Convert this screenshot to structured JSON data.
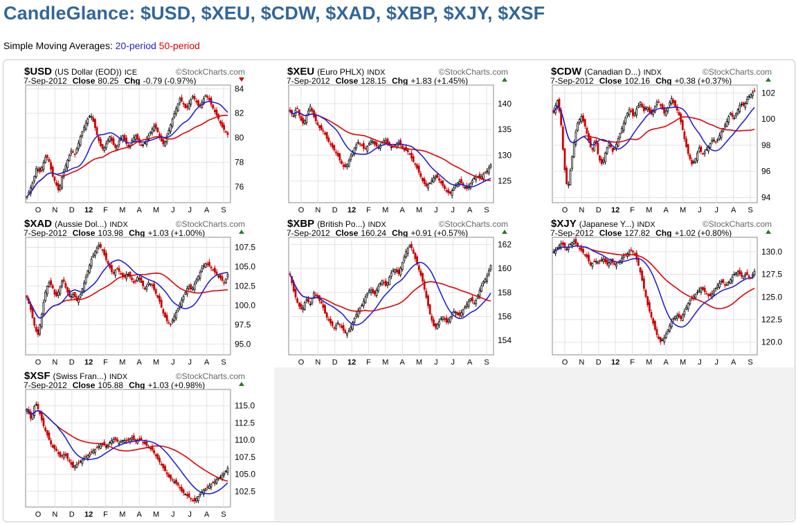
{
  "header": {
    "title": "CandleGlance: $USD, $XEU, $CDW, $XAD, $XBP, $XJY, $XSF",
    "subtitle_prefix": "Simple Moving Averages:",
    "sma20_label": "20-period",
    "sma50_label": "50-period"
  },
  "colors": {
    "title": "#336699",
    "sma20": "#2222cc",
    "sma50": "#dd0000",
    "up": "#2a7a2a",
    "down": "#cc0000"
  },
  "chart_data": [
    {
      "type": "candlestick",
      "symbol": "$USD",
      "name": "(US Dollar (EOD))",
      "exchange": "ICE",
      "source": "StockCharts.com",
      "date": "7-Sep-2012",
      "close_label": "Close",
      "close": "80.25",
      "chg_label": "Chg",
      "chg": "-0.79 (-0.97%)",
      "direction": "down",
      "x_ticks": [
        "O",
        "N",
        "D",
        "12",
        "F",
        "M",
        "A",
        "M",
        "J",
        "J",
        "A",
        "S"
      ],
      "y_ticks": [
        76,
        78,
        80,
        82,
        84
      ],
      "ylim": [
        74.7,
        84.3
      ],
      "close_series": [
        75.2,
        75.8,
        76.5,
        77.6,
        77.2,
        77.8,
        78.6,
        78.0,
        76.9,
        76.3,
        75.6,
        76.8,
        77.6,
        78.4,
        79.0,
        78.6,
        79.4,
        80.3,
        80.9,
        81.5,
        81.9,
        81.2,
        80.2,
        79.4,
        79.0,
        79.6,
        80.1,
        79.5,
        79.1,
        79.8,
        80.2,
        79.6,
        79.2,
        79.8,
        80.2,
        79.7,
        79.3,
        79.6,
        80.1,
        80.6,
        81.0,
        80.5,
        79.8,
        79.4,
        80.2,
        81.0,
        81.8,
        82.5,
        83.2,
        82.8,
        82.3,
        82.9,
        83.4,
        83.0,
        82.5,
        82.9,
        83.5,
        83.2,
        82.6,
        82.1,
        81.6,
        81.0,
        80.6,
        80.25
      ]
    },
    {
      "type": "candlestick",
      "symbol": "$XEU",
      "name": "(Euro PHLX)",
      "exchange": "INDX",
      "source": "StockCharts.com",
      "date": "7-Sep-2012",
      "close_label": "Close",
      "close": "128.15",
      "chg_label": "Chg",
      "chg": "+1.83 (+1.45%)",
      "direction": "up",
      "x_ticks": [
        "O",
        "N",
        "D",
        "12",
        "F",
        "M",
        "A",
        "M",
        "J",
        "J",
        "A",
        "S"
      ],
      "y_ticks": [
        125,
        130,
        135,
        140
      ],
      "ylim": [
        120.8,
        143.6
      ],
      "close_series": [
        138.5,
        137.5,
        139.5,
        137.0,
        136.0,
        138.0,
        139.5,
        137.5,
        136.0,
        135.0,
        134.5,
        133.0,
        132.0,
        131.0,
        130.0,
        128.5,
        127.5,
        128.5,
        130.0,
        131.5,
        132.5,
        132.0,
        131.0,
        132.0,
        133.0,
        132.0,
        131.5,
        132.5,
        133.0,
        132.0,
        131.5,
        132.0,
        132.5,
        131.5,
        131.0,
        130.5,
        129.0,
        128.0,
        126.5,
        125.0,
        124.0,
        124.5,
        125.5,
        126.0,
        125.0,
        124.0,
        123.0,
        122.5,
        123.5,
        124.5,
        125.0,
        124.0,
        123.5,
        124.5,
        125.5,
        126.0,
        125.5,
        126.5,
        127.0,
        128.15
      ]
    },
    {
      "type": "candlestick",
      "symbol": "$CDW",
      "name": "(Canadian D...)",
      "exchange": "INDX",
      "source": "StockCharts.com",
      "date": "7-Sep-2012",
      "close_label": "Close",
      "close": "102.16",
      "chg_label": "Chg",
      "chg": "+0.38 (+0.37%)",
      "direction": "up",
      "x_ticks": [
        "O",
        "N",
        "D",
        "12",
        "F",
        "M",
        "A",
        "M",
        "J",
        "J",
        "A",
        "S"
      ],
      "y_ticks": [
        94,
        96,
        98,
        100,
        102
      ],
      "ylim": [
        93.6,
        102.6
      ],
      "close_series": [
        100.5,
        101.5,
        100.0,
        96.5,
        94.5,
        96.5,
        98.5,
        99.8,
        100.2,
        99.5,
        98.5,
        97.5,
        98.5,
        97.0,
        96.5,
        97.5,
        98.2,
        97.5,
        98.0,
        98.8,
        99.5,
        100.3,
        100.8,
        100.2,
        100.8,
        101.3,
        100.6,
        101.0,
        100.3,
        100.8,
        101.4,
        101.0,
        100.4,
        100.9,
        101.6,
        101.0,
        100.5,
        99.5,
        98.2,
        97.2,
        96.5,
        97.0,
        97.8,
        97.3,
        97.6,
        98.0,
        98.5,
        98.2,
        98.8,
        99.3,
        99.8,
        100.5,
        100.0,
        100.6,
        101.2,
        101.0,
        101.6,
        101.9,
        102.16
      ]
    },
    {
      "type": "candlestick",
      "symbol": "$XAD",
      "name": "(Aussie Dol...)",
      "exchange": "INDX",
      "source": "StockCharts.com",
      "date": "7-Sep-2012",
      "close_label": "Close",
      "close": "103.98",
      "chg_label": "Chg",
      "chg": "+1.03 (+1.00%)",
      "direction": "up",
      "x_ticks": [
        "O",
        "N",
        "D",
        "12",
        "F",
        "M",
        "A",
        "M",
        "J",
        "J",
        "A",
        "S"
      ],
      "y_ticks": [
        95.0,
        97.5,
        100.0,
        102.5,
        105.0,
        107.5
      ],
      "ylim": [
        93.6,
        108.8
      ],
      "close_series": [
        101.0,
        99.5,
        97.5,
        96.0,
        98.5,
        101.5,
        103.0,
        102.5,
        101.0,
        102.0,
        103.5,
        102.0,
        101.0,
        101.5,
        100.5,
        101.5,
        103.0,
        104.5,
        106.0,
        107.0,
        107.8,
        107.2,
        106.0,
        105.0,
        104.0,
        104.8,
        104.2,
        103.5,
        104.2,
        103.5,
        102.8,
        103.8,
        102.8,
        102.0,
        103.0,
        102.5,
        101.5,
        100.5,
        99.0,
        98.0,
        97.5,
        98.5,
        99.5,
        100.5,
        101.5,
        102.5,
        102.0,
        103.0,
        104.0,
        105.0,
        105.5,
        105.0,
        104.5,
        104.0,
        103.5,
        102.9,
        103.98
      ]
    },
    {
      "type": "candlestick",
      "symbol": "$XBP",
      "name": "(British Po...)",
      "exchange": "INDX",
      "source": "StockCharts.com",
      "date": "7-Sep-2012",
      "close_label": "Close",
      "close": "160.24",
      "chg_label": "Chg",
      "chg": "+0.91 (+0.57%)",
      "direction": "up",
      "x_ticks": [
        "O",
        "N",
        "D",
        "12",
        "F",
        "M",
        "A",
        "M",
        "J",
        "J",
        "A",
        "S"
      ],
      "y_ticks": [
        154,
        156,
        158,
        160,
        162
      ],
      "ylim": [
        152.8,
        162.6
      ],
      "close_series": [
        159.5,
        158.0,
        157.0,
        156.5,
        157.5,
        157.0,
        158.0,
        157.5,
        157.0,
        156.0,
        155.5,
        155.0,
        155.5,
        155.0,
        154.5,
        155.0,
        155.8,
        156.5,
        157.0,
        157.8,
        158.3,
        157.8,
        158.5,
        159.0,
        158.5,
        159.5,
        160.0,
        159.5,
        160.5,
        161.5,
        162.0,
        161.0,
        160.0,
        159.0,
        157.5,
        156.0,
        155.0,
        155.5,
        156.0,
        155.5,
        156.0,
        156.5,
        156.0,
        156.5,
        157.0,
        157.5,
        157.0,
        158.0,
        158.8,
        159.3,
        160.24
      ]
    },
    {
      "type": "candlestick",
      "symbol": "$XJY",
      "name": "(Japanese Y...)",
      "exchange": "INDX",
      "source": "StockCharts.com",
      "date": "7-Sep-2012",
      "close_label": "Close",
      "close": "127.82",
      "chg_label": "Chg",
      "chg": "+1.02 (+0.80%)",
      "direction": "up",
      "x_ticks": [
        "O",
        "N",
        "D",
        "12",
        "F",
        "M",
        "A",
        "M",
        "J",
        "J",
        "A",
        "S"
      ],
      "y_ticks": [
        120.0,
        122.5,
        125.0,
        127.5,
        130.0
      ],
      "ylim": [
        118.6,
        131.6
      ],
      "close_series": [
        130.0,
        130.5,
        131.0,
        130.2,
        130.8,
        131.2,
        130.5,
        130.0,
        129.5,
        128.5,
        129.0,
        128.8,
        129.3,
        128.6,
        129.0,
        128.5,
        128.9,
        129.5,
        129.8,
        130.2,
        129.5,
        128.0,
        126.0,
        124.0,
        122.5,
        121.0,
        120.0,
        120.5,
        121.5,
        122.5,
        123.0,
        122.6,
        123.5,
        124.5,
        125.0,
        125.5,
        126.0,
        125.5,
        125.0,
        125.6,
        126.3,
        126.8,
        126.2,
        126.8,
        127.5,
        127.8,
        127.2,
        127.6,
        127.0,
        127.82
      ]
    },
    {
      "type": "candlestick",
      "symbol": "$XSF",
      "name": "(Swiss Fran...)",
      "exchange": "INDX",
      "source": "StockCharts.com",
      "date": "7-Sep-2012",
      "close_label": "Close",
      "close": "105.88",
      "chg_label": "Chg",
      "chg": "+1.03 (+0.98%)",
      "direction": "up",
      "x_ticks": [
        "O",
        "N",
        "D",
        "12",
        "F",
        "M",
        "A",
        "M",
        "J",
        "J",
        "A",
        "S"
      ],
      "y_ticks": [
        102.5,
        105.0,
        107.5,
        110.0,
        112.5,
        115.0
      ],
      "ylim": [
        100.2,
        117.4
      ],
      "close_series": [
        114.5,
        113.0,
        115.5,
        114.0,
        112.0,
        110.5,
        109.0,
        108.5,
        107.5,
        108.0,
        107.0,
        106.0,
        106.5,
        107.0,
        107.5,
        108.0,
        108.5,
        109.0,
        109.5,
        109.0,
        109.8,
        110.2,
        109.5,
        110.0,
        109.8,
        110.4,
        109.8,
        110.2,
        109.5,
        109.0,
        108.5,
        107.5,
        106.5,
        105.5,
        104.5,
        104.0,
        103.5,
        102.5,
        102.0,
        101.5,
        101.0,
        101.8,
        102.5,
        103.0,
        103.5,
        104.0,
        104.5,
        105.0,
        105.88
      ]
    }
  ]
}
